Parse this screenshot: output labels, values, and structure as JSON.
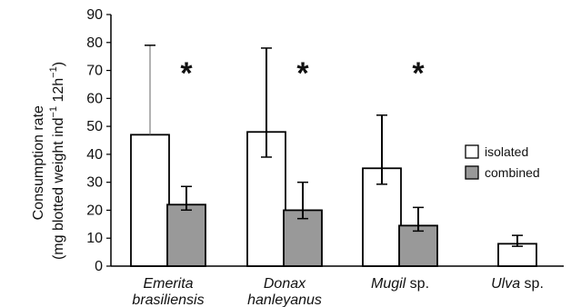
{
  "chart_data": {
    "type": "bar",
    "categories": [
      {
        "main": "Emerita",
        "line2": "brasiliensis",
        "suffix": ""
      },
      {
        "main": "Donax",
        "line2": "hanleyanus",
        "suffix": ""
      },
      {
        "main": "Mugil",
        "line2": "",
        "suffix": " sp."
      },
      {
        "main": "Ulva",
        "line2": "",
        "suffix": " sp."
      }
    ],
    "series": [
      {
        "name": "isolated",
        "color": "#ffffff",
        "values": [
          47,
          48,
          35,
          8
        ],
        "errors": [
          32,
          30,
          19,
          3
        ]
      },
      {
        "name": "combined",
        "color": "#999999",
        "values": [
          22,
          20,
          14.5,
          null
        ],
        "errors": [
          6.5,
          10,
          6.5,
          null
        ]
      }
    ],
    "significance": [
      "*",
      "*",
      "*",
      ""
    ],
    "ylabel_line1": "Consumption rate",
    "ylabel_line2_prefix": "(mg blotted weight ind",
    "ylabel_sup1": "−1",
    "ylabel_mid": " 12h",
    "ylabel_sup2": "−1",
    "ylabel_suffix": ")",
    "ylim": [
      0,
      90
    ],
    "yticks": [
      0,
      10,
      20,
      30,
      40,
      50,
      60,
      70,
      80,
      90
    ],
    "legend_position": "right"
  }
}
